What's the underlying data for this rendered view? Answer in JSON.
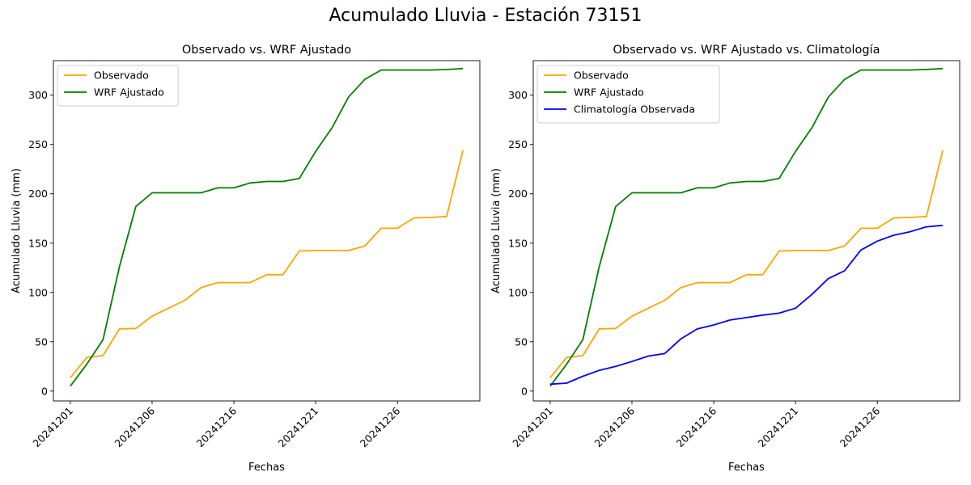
{
  "figure": {
    "suptitle": "Acumulado Lluvia - Estación 73151"
  },
  "chart_data": [
    {
      "type": "line",
      "title": "Observado vs. WRF Ajustado",
      "xlabel": "Fechas",
      "ylabel": "Acumulado Lluvia (mm)",
      "x_tick_labels": [
        "20241201",
        "20241206",
        "20241216",
        "20241221",
        "20241226"
      ],
      "x_tick_index": [
        0,
        5,
        10,
        15,
        20
      ],
      "ylim": [
        -10,
        335
      ],
      "y_ticks": [
        0,
        50,
        100,
        150,
        200,
        250,
        300
      ],
      "legend_position": "top-left",
      "series": [
        {
          "name": "Observado",
          "color": "#ffa500",
          "values": [
            13.5,
            34,
            36,
            63,
            63.5,
            76,
            84,
            92,
            105,
            110,
            110,
            110,
            118,
            118,
            142,
            142.5,
            142.5,
            142.5,
            147,
            165,
            165,
            175.5,
            176,
            177,
            244
          ]
        },
        {
          "name": "WRF Ajustado",
          "color": "#008000",
          "values": [
            5,
            27,
            52,
            126,
            187,
            201,
            201,
            201,
            201,
            206,
            206,
            211,
            212.5,
            212.5,
            215.5,
            243,
            267,
            298,
            316,
            325.5,
            325.5,
            325.5,
            325.5,
            326,
            327
          ]
        }
      ]
    },
    {
      "type": "line",
      "title": "Observado vs. WRF Ajustado vs. Climatología",
      "xlabel": "Fechas",
      "ylabel": "Acumulado Lluvia (mm)",
      "x_tick_labels": [
        "20241201",
        "20241206",
        "20241216",
        "20241221",
        "20241226"
      ],
      "x_tick_index": [
        0,
        5,
        10,
        15,
        20
      ],
      "ylim": [
        -10,
        335
      ],
      "y_ticks": [
        0,
        50,
        100,
        150,
        200,
        250,
        300
      ],
      "legend_position": "top-left",
      "series": [
        {
          "name": "Observado",
          "color": "#ffa500",
          "values": [
            13.5,
            34,
            36,
            63,
            63.5,
            76,
            84,
            92,
            105,
            110,
            110,
            110,
            118,
            118,
            142,
            142.5,
            142.5,
            142.5,
            147,
            165,
            165,
            175.5,
            176,
            177,
            244
          ]
        },
        {
          "name": "WRF Ajustado",
          "color": "#008000",
          "values": [
            5,
            27,
            52,
            126,
            187,
            201,
            201,
            201,
            201,
            206,
            206,
            211,
            212.5,
            212.5,
            215.5,
            243,
            267,
            298,
            316,
            325.5,
            325.5,
            325.5,
            325.5,
            326,
            327
          ]
        },
        {
          "name": "Climatología Observada",
          "color": "#0000ff",
          "values": [
            7,
            8,
            15,
            21,
            25,
            30,
            35.5,
            38,
            53,
            63,
            67,
            72,
            74.5,
            77,
            79,
            84,
            98,
            114,
            122,
            143,
            152,
            158,
            161.5,
            166.5,
            168
          ]
        }
      ]
    }
  ]
}
